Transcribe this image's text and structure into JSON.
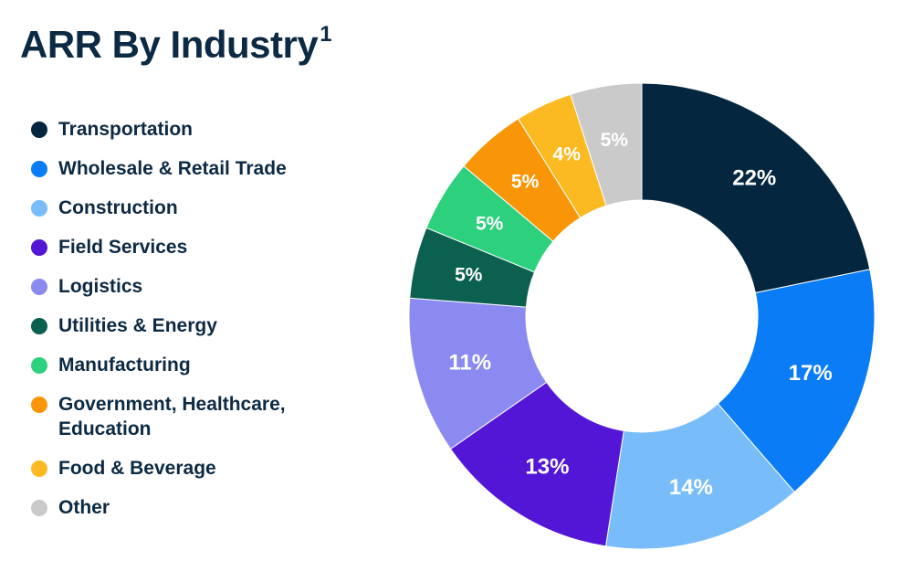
{
  "title": "ARR By Industry",
  "title_footnote": "1",
  "chart_data": {
    "type": "pie",
    "title": "ARR By Industry",
    "legend_position": "left",
    "donut": true,
    "slices": [
      {
        "label": "Transportation",
        "value": 22,
        "value_label": "22%",
        "color": "#04263f"
      },
      {
        "label": "Wholesale & Retail Trade",
        "value": 17,
        "value_label": "17%",
        "color": "#0a7cf5"
      },
      {
        "label": "Construction",
        "value": 14,
        "value_label": "14%",
        "color": "#78bdf9"
      },
      {
        "label": "Field Services",
        "value": 13,
        "value_label": "13%",
        "color": "#5416d6"
      },
      {
        "label": "Logistics",
        "value": 11,
        "value_label": "11%",
        "color": "#8b8af0"
      },
      {
        "label": "Utilities & Energy",
        "value": 5,
        "value_label": "5%",
        "color": "#0b6050"
      },
      {
        "label": "Manufacturing",
        "value": 5,
        "value_label": "5%",
        "color": "#2dd07d"
      },
      {
        "label": "Government, Healthcare, Education",
        "value": 5,
        "value_label": "5%",
        "color": "#f99608"
      },
      {
        "label": "Food & Beverage",
        "value": 4,
        "value_label": "4%",
        "color": "#fbba22"
      },
      {
        "label": "Other",
        "value": 5,
        "value_label": "5%",
        "color": "#cacaca"
      }
    ]
  }
}
